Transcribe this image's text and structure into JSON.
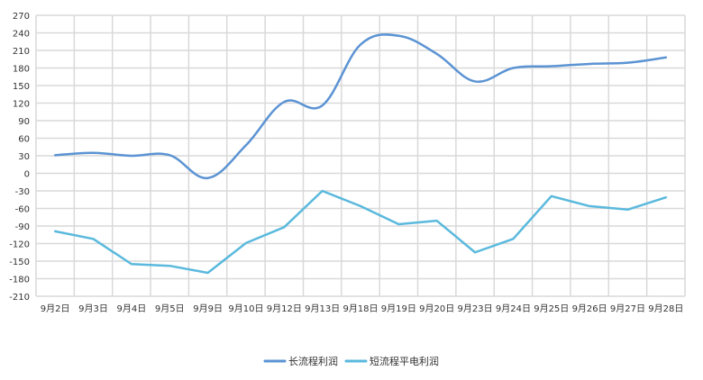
{
  "chart_data": {
    "type": "line",
    "categories": [
      "9月2日",
      "9月3日",
      "9月4日",
      "9月5日",
      "9月9日",
      "9月10日",
      "9月12日",
      "9月13日",
      "9月18日",
      "9月19日",
      "9月20日",
      "9月23日",
      "9月24日",
      "9月25日",
      "9月26日",
      "9月27日",
      "9月28日"
    ],
    "series": [
      {
        "name": "长流程利润",
        "color": "#5b93d3",
        "values": [
          31,
          35,
          30,
          31,
          -8,
          48,
          122,
          116,
          220,
          235,
          204,
          157,
          180,
          183,
          187,
          189,
          198
        ]
      },
      {
        "name": "短流程平电利润",
        "color": "#5ab9dd",
        "values": [
          -99,
          -112,
          -155,
          -158,
          -170,
          -119,
          -92,
          -30,
          -56,
          -87,
          -81,
          -135,
          -112,
          -39,
          -56,
          -62,
          -41
        ]
      }
    ],
    "y_ticks": [
      270,
      240,
      210,
      180,
      150,
      120,
      90,
      60,
      30,
      0,
      -30,
      -60,
      -90,
      -120,
      -150,
      -180,
      -210
    ],
    "ylim": [
      -210,
      270
    ],
    "grid": true,
    "legend_position": "bottom"
  }
}
